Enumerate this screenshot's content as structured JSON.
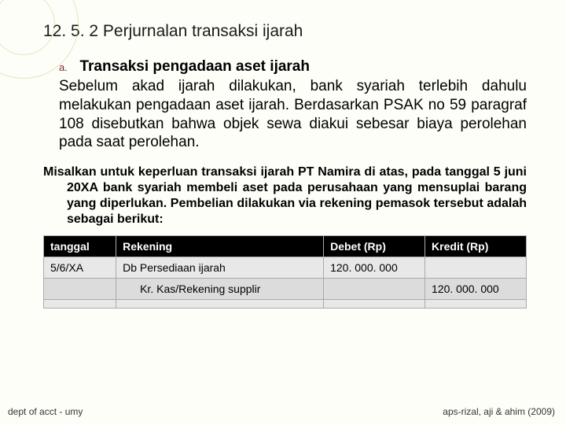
{
  "title": "12. 5. 2 Perjurnalan transaksi ijarah",
  "item": {
    "marker": "a.",
    "heading": "Transaksi pengadaan aset ijarah",
    "body": "Sebelum akad ijarah dilakukan, bank syariah terlebih dahulu melakukan pengadaan aset ijarah. Berdasarkan PSAK no 59 paragraf 108 disebutkan bahwa objek sewa diakui sebesar biaya perolehan pada saat perolehan."
  },
  "example": "Misalkan untuk keperluan transaksi ijarah PT Namira di atas, pada tanggal 5 juni 20XA bank syariah membeli aset pada perusahaan yang mensuplai barang yang diperlukan. Pembelian dilakukan via rekening pemasok tersebut adalah sebagai berikut:",
  "table": {
    "headers": {
      "date": "tanggal",
      "acct": "Rekening",
      "debit": "Debet (Rp)",
      "credit": "Kredit (Rp)"
    },
    "rows": [
      {
        "date": "5/6/XA",
        "acct": "Db Persediaan ijarah",
        "debit": "120. 000. 000",
        "credit": ""
      },
      {
        "date": "",
        "acct_indent": "Kr. Kas/Rekening supplir",
        "debit": "",
        "credit": "120. 000. 000"
      },
      {
        "date": "",
        "acct": "",
        "debit": "",
        "credit": ""
      }
    ]
  },
  "footer": {
    "left": "dept of acct - umy",
    "right": "aps-rizal, aji & ahim (2009)"
  }
}
